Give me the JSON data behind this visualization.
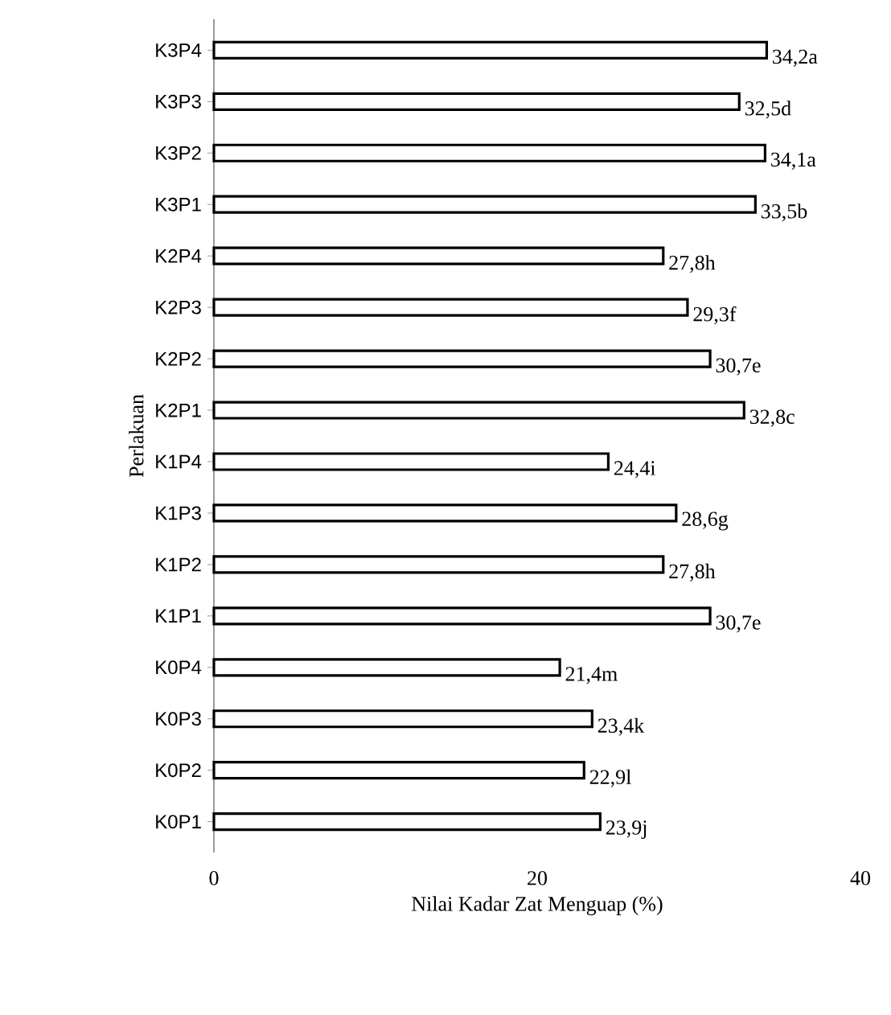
{
  "chart_data": {
    "type": "bar",
    "orientation": "horizontal",
    "xlabel": "Nilai Kadar Zat Menguap (%)",
    "ylabel": "Perlakuan",
    "categories": [
      "K3P4",
      "K3P3",
      "K3P2",
      "K3P1",
      "K2P4",
      "K2P3",
      "K2P2",
      "K2P1",
      "K1P4",
      "K1P3",
      "K1P2",
      "K1P1",
      "K0P4",
      "K0P3",
      "K0P2",
      "K0P1"
    ],
    "values": [
      34.2,
      32.5,
      34.1,
      33.5,
      27.8,
      29.3,
      30.7,
      32.8,
      24.4,
      28.6,
      27.8,
      30.7,
      21.4,
      23.4,
      22.9,
      23.9
    ],
    "value_labels": [
      "34,2a",
      "32,5d",
      "34,1a",
      "33,5b",
      "27,8h",
      "29,3f",
      "30,7e",
      "32,8c",
      "24,4i",
      "28,6g",
      "27,8h",
      "30,7e",
      "21,4m",
      "23,4k",
      "22,9l",
      "23,9j"
    ],
    "color": "#ffffff",
    "xlim": [
      0,
      40
    ],
    "xticks": [
      0,
      20,
      40
    ]
  }
}
